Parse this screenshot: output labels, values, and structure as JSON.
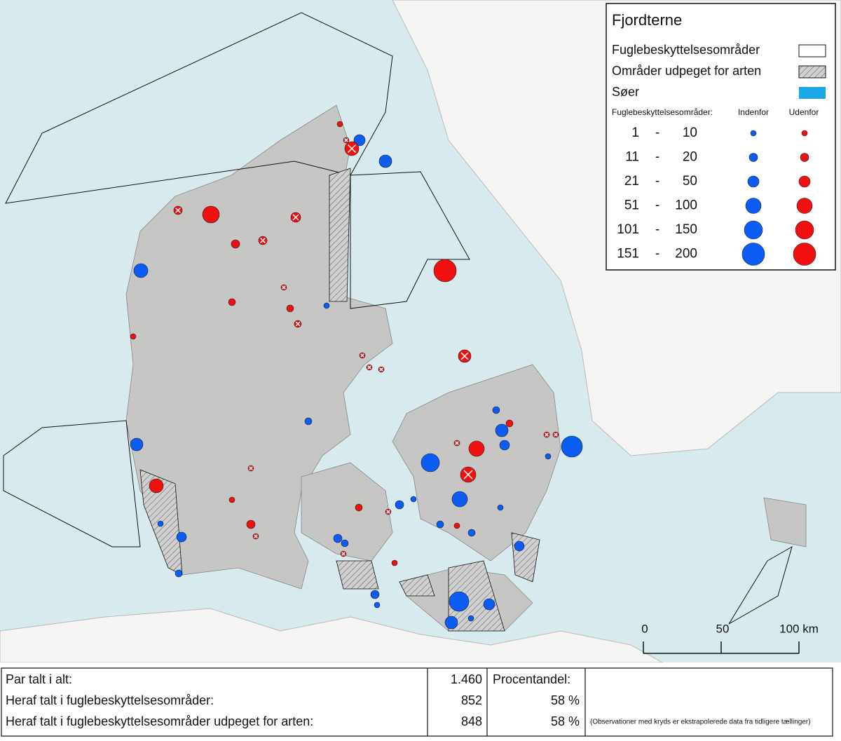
{
  "legend": {
    "title": "Fjordterne",
    "items": [
      "Fuglebeskyttelsesområder",
      "Områder udpeget for arten",
      "Søer"
    ],
    "size_header": "Fuglebeskyttelsesområder:",
    "col_inside": "Indenfor",
    "col_outside": "Udenfor",
    "range_separator": "-",
    "size_classes": [
      {
        "from": "1",
        "to": "10"
      },
      {
        "from": "11",
        "to": "20"
      },
      {
        "from": "21",
        "to": "50"
      },
      {
        "from": "51",
        "to": "100"
      },
      {
        "from": "101",
        "to": "150"
      },
      {
        "from": "151",
        "to": "200"
      }
    ]
  },
  "scale_bar": {
    "labels": [
      "0",
      "50",
      "100 km"
    ]
  },
  "table": {
    "rows": [
      [
        "Par talt i alt:",
        "1.460",
        "Procentandel:",
        ""
      ],
      [
        "Heraf talt i fuglebeskyttelsesområder:",
        "852",
        "58 %",
        ""
      ],
      [
        "Heraf talt i fuglebeskyttelsesområder udpeget for arten:",
        "848",
        "58 %",
        "(Observationer med kryds er ekstrapolerede data fra tidligere tællinger)"
      ]
    ]
  }
}
